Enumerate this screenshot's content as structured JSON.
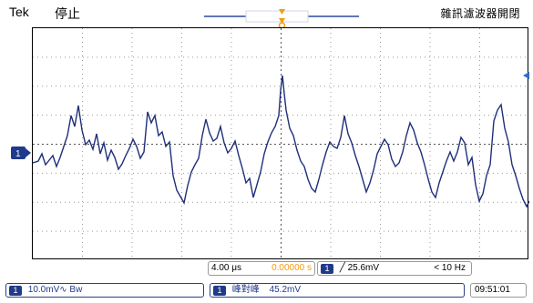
{
  "header": {
    "brand": "Tek",
    "status": "停止",
    "mode_title": "雜訊濾波器開閉"
  },
  "waveform": {
    "channel_label": "1",
    "color": "#1f2f7a",
    "grid_color": "#9a9a9a"
  },
  "status_bar": {
    "timebase": "4.00 μs",
    "trigger_pos": "0.00000 s",
    "trigger_channel": "1",
    "trigger_level": "╱ 25.6mV",
    "freq": "< 10 Hz",
    "ch1_scale": "10.0mV∿ Bw",
    "meas_name": "峰對峰",
    "meas_value": "45.2mV",
    "clock": "09:51:01"
  },
  "icons": {
    "trigger_marker": "trigger-arrow-icon",
    "offset_marker": "offset-marker-icon"
  }
}
